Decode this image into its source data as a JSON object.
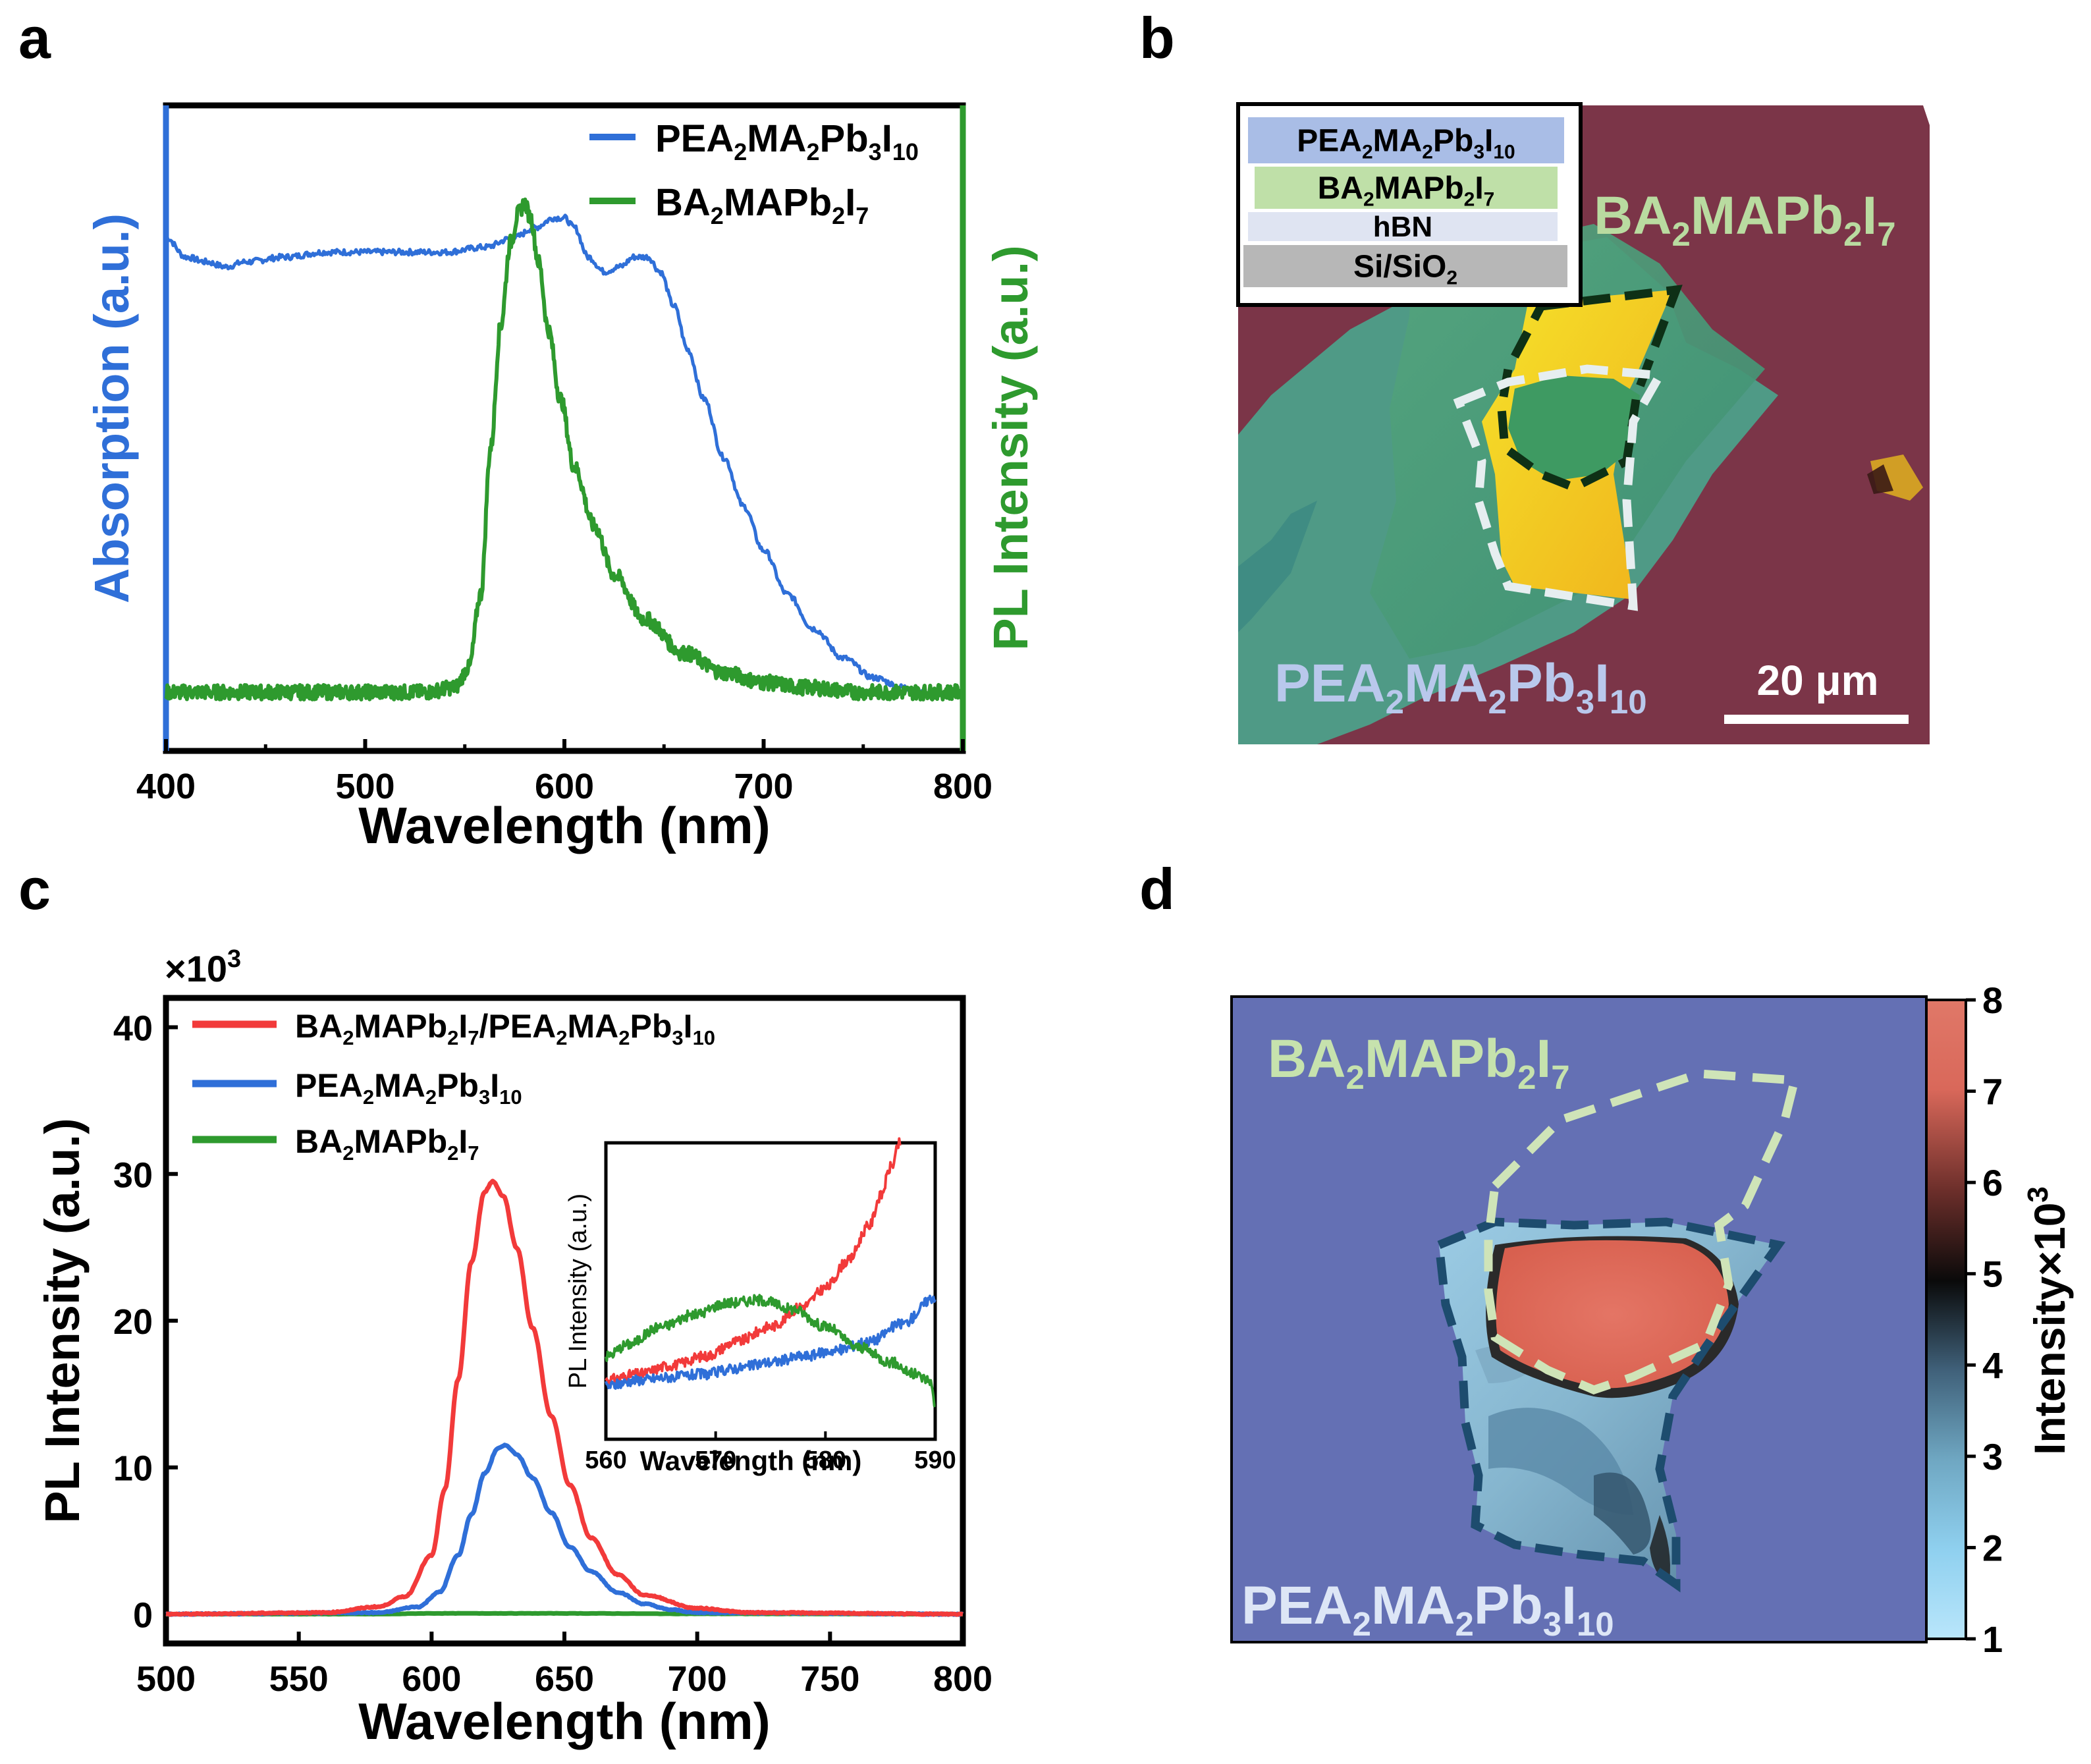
{
  "panels": {
    "a": "a",
    "b": "b",
    "c": "c",
    "d": "d"
  },
  "colors": {
    "blue": "#2f6fd8",
    "green": "#2e9a2e",
    "red": "#f23a3a",
    "mapBg": "#6470b4",
    "pinkBg": "#7b3548"
  },
  "chart_data": [
    {
      "id": "a",
      "type": "line",
      "xlabel": "Wavelength (nm)",
      "ylabel_left": "Absorption (a.u.)",
      "ylabel_right": "PL Intensity (a.u.)",
      "xlim": [
        400,
        800
      ],
      "ylim": [
        0,
        1
      ],
      "xticks": [
        "400",
        "500",
        "600",
        "700",
        "800"
      ],
      "legend": [
        {
          "base": "PEA",
          "parts": [
            [
              "PEA",
              ""
            ],
            [
              "2",
              "sub"
            ],
            [
              "MA",
              ""
            ],
            [
              "2",
              "sub"
            ],
            [
              "Pb",
              ""
            ],
            [
              "3",
              "sub"
            ],
            [
              "I",
              ""
            ],
            [
              "10",
              "sub"
            ]
          ],
          "color": "blue"
        },
        {
          "base": "BA",
          "parts": [
            [
              "BA",
              ""
            ],
            [
              "2",
              "sub"
            ],
            [
              "MAPb",
              ""
            ],
            [
              "2",
              "sub"
            ],
            [
              "I",
              ""
            ],
            [
              "7",
              "sub"
            ]
          ],
          "color": "green"
        }
      ],
      "series": [
        {
          "name": "PEA2MA2Pb3I10 absorption",
          "color": "blue",
          "x": [
            400,
            410,
            420,
            430,
            440,
            460,
            480,
            500,
            520,
            540,
            560,
            575,
            585,
            595,
            600,
            605,
            612,
            620,
            628,
            635,
            642,
            648,
            655,
            662,
            670,
            680,
            690,
            700,
            712,
            725,
            740,
            755,
            770,
            780
          ],
          "y": [
            0.93,
            0.89,
            0.88,
            0.87,
            0.88,
            0.89,
            0.9,
            0.9,
            0.9,
            0.9,
            0.91,
            0.93,
            0.95,
            0.97,
            0.97,
            0.95,
            0.89,
            0.86,
            0.87,
            0.89,
            0.89,
            0.86,
            0.79,
            0.7,
            0.6,
            0.48,
            0.38,
            0.29,
            0.2,
            0.13,
            0.07,
            0.03,
            0.01,
            0.0
          ]
        },
        {
          "name": "BA2MAPb2I7 PL",
          "color": "green",
          "x": [
            400,
            450,
            500,
            530,
            545,
            552,
            558,
            563,
            568,
            573,
            577,
            580,
            583,
            587,
            592,
            598,
            605,
            615,
            625,
            640,
            660,
            680,
            700,
            720,
            750,
            800
          ],
          "y": [
            0.0,
            0.0,
            0.0,
            0.0,
            0.01,
            0.05,
            0.2,
            0.5,
            0.75,
            0.92,
            0.98,
            1.0,
            0.97,
            0.88,
            0.74,
            0.6,
            0.46,
            0.34,
            0.24,
            0.15,
            0.08,
            0.04,
            0.02,
            0.01,
            0.0,
            0.0
          ]
        }
      ]
    },
    {
      "id": "c",
      "type": "line",
      "xlabel": "Wavelength (nm)",
      "ylabel": "PL Intensity (a.u.)",
      "y_multiplier": "×10",
      "y_multiplier_exp": "3",
      "xlim": [
        500,
        800
      ],
      "ylim": [
        -2,
        42
      ],
      "xticks": [
        "500",
        "550",
        "600",
        "650",
        "700",
        "750",
        "800"
      ],
      "yticks": [
        "0",
        "10",
        "20",
        "30",
        "40"
      ],
      "legend": [
        {
          "parts": [
            [
              "BA",
              ""
            ],
            [
              "2",
              "sub"
            ],
            [
              "MAPb",
              ""
            ],
            [
              "2",
              "sub"
            ],
            [
              "I",
              ""
            ],
            [
              "7",
              "sub"
            ],
            [
              "/PEA",
              ""
            ],
            [
              "2",
              "sub"
            ],
            [
              "MA",
              ""
            ],
            [
              "2",
              "sub"
            ],
            [
              "Pb",
              ""
            ],
            [
              "3",
              "sub"
            ],
            [
              "I",
              ""
            ],
            [
              "10",
              "sub"
            ]
          ],
          "color": "red"
        },
        {
          "parts": [
            [
              "PEA",
              ""
            ],
            [
              "2",
              "sub"
            ],
            [
              "MA",
              ""
            ],
            [
              "2",
              "sub"
            ],
            [
              "Pb",
              ""
            ],
            [
              "3",
              "sub"
            ],
            [
              "I",
              ""
            ],
            [
              "10",
              "sub"
            ]
          ],
          "color": "blue"
        },
        {
          "parts": [
            [
              "BA",
              ""
            ],
            [
              "2",
              "sub"
            ],
            [
              "MAPb",
              ""
            ],
            [
              "2",
              "sub"
            ],
            [
              "I",
              ""
            ],
            [
              "7",
              "sub"
            ]
          ],
          "color": "green"
        }
      ],
      "series": [
        {
          "name": "BA2MAPb2I7/PEA2MA2Pb3I10",
          "color": "red",
          "x": [
            500,
            560,
            580,
            590,
            600,
            605,
            610,
            615,
            620,
            623,
            627,
            632,
            638,
            645,
            652,
            660,
            670,
            680,
            700,
            720,
            800
          ],
          "y": [
            0,
            0.1,
            0.5,
            1.2,
            4.0,
            8.5,
            16.0,
            24.0,
            28.8,
            29.5,
            28.5,
            25.0,
            19.5,
            13.5,
            8.8,
            5.2,
            2.7,
            1.3,
            0.4,
            0.1,
            0
          ]
        },
        {
          "name": "PEA2MA2Pb3I10",
          "color": "blue",
          "x": [
            500,
            580,
            595,
            603,
            610,
            615,
            620,
            625,
            628,
            632,
            638,
            645,
            652,
            660,
            670,
            680,
            690,
            700,
            800
          ],
          "y": [
            0,
            0.1,
            0.5,
            1.5,
            4.0,
            6.8,
            9.6,
            11.3,
            11.5,
            10.9,
            9.3,
            6.9,
            4.6,
            2.9,
            1.5,
            0.7,
            0.3,
            0.1,
            0
          ]
        },
        {
          "name": "BA2MAPb2I7",
          "color": "green",
          "x": [
            500,
            580,
            600,
            650,
            700,
            800
          ],
          "y": [
            0,
            0,
            0.05,
            0.05,
            0.02,
            0
          ]
        }
      ],
      "inset": {
        "type": "line",
        "xlabel": "Wavelength (nm)",
        "ylabel": "PL Intensity (a.u.)",
        "xlim": [
          560,
          590
        ],
        "ylim": [
          0,
          1
        ],
        "xticks": [
          "560",
          "570",
          "580",
          "590"
        ],
        "series": [
          {
            "name": "red",
            "color": "red",
            "x": [
              560,
              563,
              566,
              569,
              572,
              575,
              578,
              580,
              582,
              584,
              585,
              586,
              586.8
            ],
            "y": [
              0.2,
              0.22,
              0.25,
              0.28,
              0.33,
              0.38,
              0.45,
              0.51,
              0.6,
              0.72,
              0.82,
              0.92,
              1.0
            ]
          },
          {
            "name": "blue",
            "color": "blue",
            "x": [
              560,
              563,
              566,
              569,
              572,
              575,
              578,
              581,
              584,
              587,
              590
            ],
            "y": [
              0.18,
              0.2,
              0.21,
              0.22,
              0.24,
              0.26,
              0.28,
              0.3,
              0.33,
              0.39,
              0.48
            ]
          },
          {
            "name": "green",
            "color": "green",
            "x": [
              560,
              562,
              565,
              568,
              571,
              574,
              577,
              580,
              583,
              586,
              588,
              589.5,
              590
            ],
            "y": [
              0.28,
              0.32,
              0.38,
              0.42,
              0.46,
              0.47,
              0.44,
              0.38,
              0.31,
              0.26,
              0.22,
              0.2,
              0.12
            ]
          }
        ]
      }
    },
    {
      "id": "d",
      "type": "heatmap",
      "colorbar_label": "Intensity×10",
      "colorbar_exp": "3",
      "colorbar_range": [
        1,
        8
      ],
      "colorbar_ticks": [
        "1",
        "2",
        "3",
        "4",
        "5",
        "6",
        "7",
        "8"
      ],
      "colorbar_stops": [
        "#b9e6fb",
        "#8fd0ef",
        "#6fa7c2",
        "#40617a",
        "#0a0a0a",
        "#6b2e2a",
        "#d9685a",
        "#e07868"
      ],
      "labels": {
        "ba": [
          [
            "BA",
            ""
          ],
          [
            "2",
            "sub"
          ],
          [
            "MAPb",
            ""
          ],
          [
            "2",
            "sub"
          ],
          [
            "I",
            ""
          ],
          [
            "7",
            "sub"
          ]
        ],
        "pea": [
          [
            "PEA",
            ""
          ],
          [
            "2",
            "sub"
          ],
          [
            "MA",
            ""
          ],
          [
            "2",
            "sub"
          ],
          [
            "Pb",
            ""
          ],
          [
            "3",
            "sub"
          ],
          [
            "I",
            ""
          ],
          [
            "10",
            "sub"
          ]
        ]
      }
    }
  ],
  "micrograph": {
    "stack_layers": [
      {
        "parts": [
          [
            "PEA",
            ""
          ],
          [
            "2",
            "sub"
          ],
          [
            "MA",
            ""
          ],
          [
            "2",
            "sub"
          ],
          [
            "Pb",
            ""
          ],
          [
            "3",
            "sub"
          ],
          [
            "I",
            ""
          ],
          [
            "10",
            "sub"
          ]
        ],
        "fill": "#a9bde6"
      },
      {
        "parts": [
          [
            "BA",
            ""
          ],
          [
            "2",
            "sub"
          ],
          [
            "MAPb",
            ""
          ],
          [
            "2",
            "sub"
          ],
          [
            "I",
            ""
          ],
          [
            "7",
            "sub"
          ]
        ],
        "fill": "#bfe0a8"
      },
      {
        "parts": [
          [
            "hBN",
            ""
          ]
        ],
        "fill": "#dfe4f2"
      },
      {
        "parts": [
          [
            "Si/SiO",
            ""
          ],
          [
            "2",
            "sub"
          ]
        ],
        "fill": "#b7b7b7"
      }
    ],
    "label_ba": [
      [
        "BA",
        ""
      ],
      [
        "2",
        "sub"
      ],
      [
        "MAPb",
        ""
      ],
      [
        "2",
        "sub"
      ],
      [
        "I",
        ""
      ],
      [
        "7",
        "sub"
      ]
    ],
    "label_pea": [
      [
        "PEA",
        ""
      ],
      [
        "2",
        "sub"
      ],
      [
        "MA",
        ""
      ],
      [
        "2",
        "sub"
      ],
      [
        "Pb",
        ""
      ],
      [
        "3",
        "sub"
      ],
      [
        "I",
        ""
      ],
      [
        "10",
        "sub"
      ]
    ],
    "scalebar_label": "20 μm"
  }
}
